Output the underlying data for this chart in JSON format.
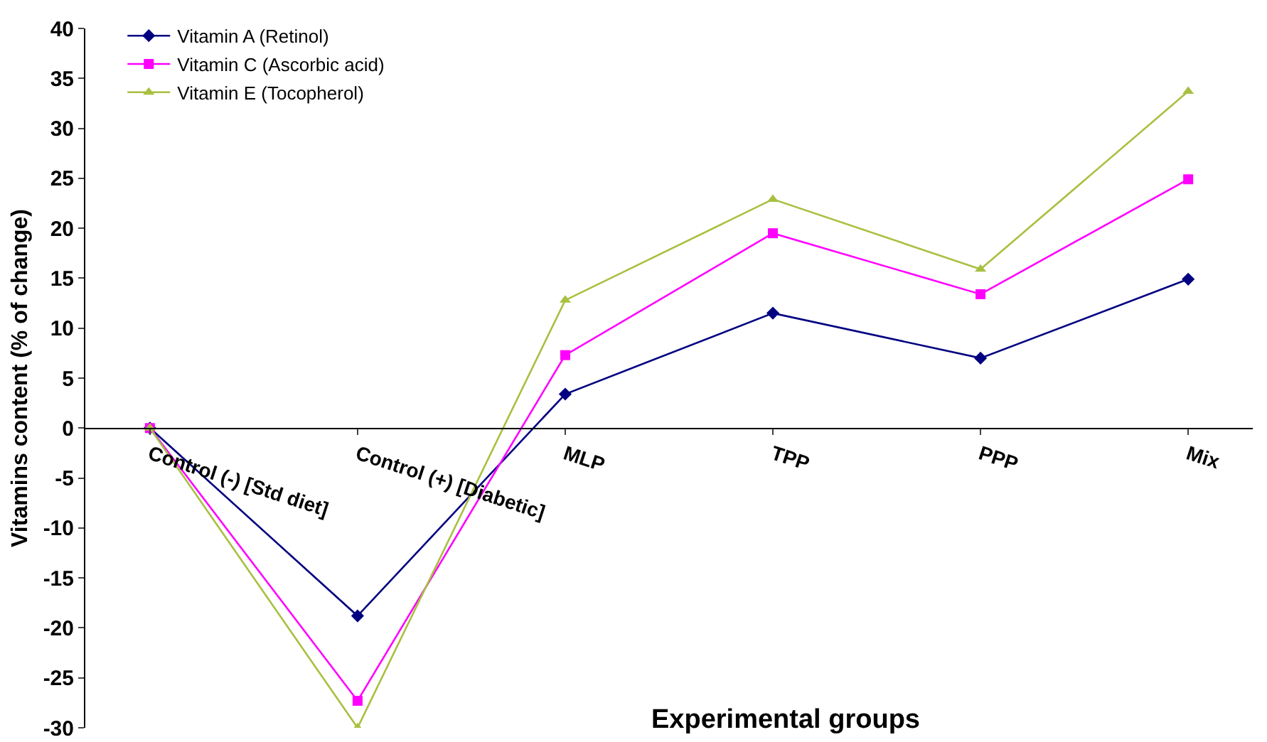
{
  "chart_data": {
    "type": "line",
    "xlabel": "Experimental groups",
    "ylabel": "Vitamins content (% of change)",
    "categories": [
      "Control (-) [Std diet]",
      "Control (+) [Diabetic]",
      "MLP",
      "TPP",
      "PPP",
      "Mix"
    ],
    "series": [
      {
        "name": "Vitamin A (Retinol)",
        "color": "#000080",
        "marker": "diamond",
        "values": [
          0,
          -18.8,
          3.4,
          11.5,
          7.0,
          14.9
        ]
      },
      {
        "name": "Vitamin C (Ascorbic acid)",
        "color": "#ff00ff",
        "marker": "square",
        "values": [
          0,
          -27.3,
          7.3,
          19.5,
          13.4,
          24.9
        ]
      },
      {
        "name": "Vitamin E (Tocopherol)",
        "color": "#a8c040",
        "marker": "triangle",
        "values": [
          0,
          -30,
          12.8,
          22.9,
          15.9,
          33.7
        ]
      }
    ],
    "ylim": [
      -30,
      40
    ],
    "yticks": [
      -30,
      -25,
      -20,
      -15,
      -10,
      -5,
      0,
      5,
      10,
      15,
      20,
      25,
      30,
      35,
      40
    ],
    "grid": false,
    "legend": "top left",
    "line_style": "solid"
  }
}
